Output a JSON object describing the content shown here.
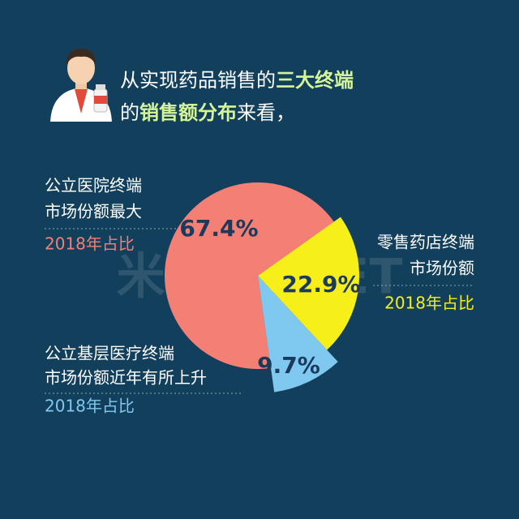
{
  "header": {
    "line1": [
      "从实现药品销售的",
      "三大终端"
    ],
    "line2": [
      "的",
      "销售额分布",
      "来看，"
    ]
  },
  "watermark": "米内MENET",
  "chart_data": {
    "type": "pie",
    "categories": [
      [
        "公立医院终端",
        "市场份额最大"
      ],
      [
        "零售药店终端",
        "市场份额"
      ],
      [
        "公立基层医疗终端",
        "市场份额近年有所上升"
      ]
    ],
    "values": [
      67.4,
      22.9,
      9.7
    ],
    "value_labels": [
      "67.4%",
      "22.9%",
      "9.7%"
    ],
    "notes": [
      "2018年占比",
      "2018年占比",
      "2018年占比"
    ],
    "colors": [
      "#f47f74",
      "#f7ef1a",
      "#7fc8f0"
    ]
  }
}
